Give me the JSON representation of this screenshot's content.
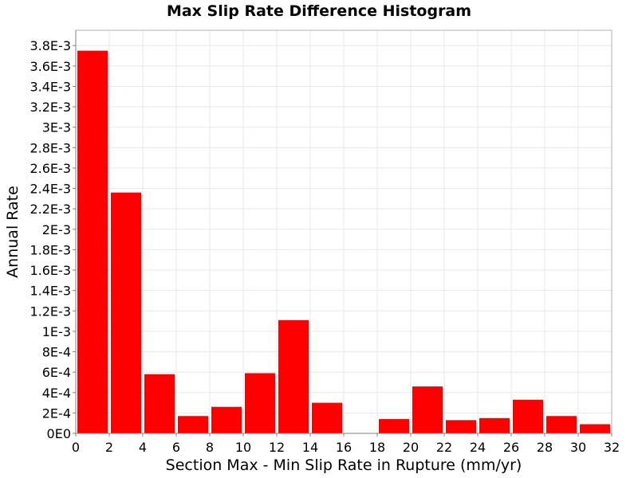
{
  "chart_data": {
    "type": "bar",
    "title": "Max Slip Rate Difference Histogram",
    "xlabel": "Section Max - Min Slip Rate in Rupture (mm/yr)",
    "ylabel": "Annual Rate",
    "xlim": [
      0,
      32
    ],
    "ylim": [
      0,
      0.00395
    ],
    "bin_width": 2,
    "bins": [
      {
        "x0": 0,
        "x1": 2,
        "value": 0.00375
      },
      {
        "x0": 2,
        "x1": 4,
        "value": 0.00236
      },
      {
        "x0": 4,
        "x1": 6,
        "value": 0.00058
      },
      {
        "x0": 6,
        "x1": 8,
        "value": 0.00017
      },
      {
        "x0": 8,
        "x1": 10,
        "value": 0.00026
      },
      {
        "x0": 10,
        "x1": 12,
        "value": 0.00059
      },
      {
        "x0": 12,
        "x1": 14,
        "value": 0.00111
      },
      {
        "x0": 14,
        "x1": 16,
        "value": 0.0003
      },
      {
        "x0": 16,
        "x1": 18,
        "value": 0
      },
      {
        "x0": 18,
        "x1": 20,
        "value": 0.00014
      },
      {
        "x0": 20,
        "x1": 22,
        "value": 0.00046
      },
      {
        "x0": 22,
        "x1": 24,
        "value": 0.00013
      },
      {
        "x0": 24,
        "x1": 26,
        "value": 0.00015
      },
      {
        "x0": 26,
        "x1": 28,
        "value": 0.00033
      },
      {
        "x0": 28,
        "x1": 30,
        "value": 0.00017
      },
      {
        "x0": 30,
        "x1": 32,
        "value": 9e-05
      }
    ],
    "x_ticks": [
      0,
      2,
      4,
      6,
      8,
      10,
      12,
      14,
      16,
      18,
      20,
      22,
      24,
      26,
      28,
      30,
      32
    ],
    "x_tick_labels": [
      "0",
      "2",
      "4",
      "6",
      "8",
      "10",
      "12",
      "14",
      "16",
      "18",
      "20",
      "22",
      "24",
      "26",
      "28",
      "30",
      "32"
    ],
    "y_ticks": [
      0,
      0.0002,
      0.0004,
      0.0006,
      0.0008,
      0.001,
      0.0012,
      0.0014,
      0.0016,
      0.0018,
      0.002,
      0.0022,
      0.0024,
      0.0026,
      0.0028,
      0.003,
      0.0032,
      0.0034,
      0.0036,
      0.0038
    ],
    "y_tick_labels": [
      "0E0",
      "2E-4",
      "4E-4",
      "6E-4",
      "8E-4",
      "1E-3",
      "1.2E-3",
      "1.4E-3",
      "1.6E-3",
      "1.8E-3",
      "2E-3",
      "2.2E-3",
      "2.4E-3",
      "2.6E-3",
      "2.8E-3",
      "3E-3",
      "3.2E-3",
      "3.4E-3",
      "3.6E-3",
      "3.8E-3"
    ],
    "grid": true,
    "legend": "none",
    "bar_color": "#ff0000",
    "grid_color": "#e8e8e8"
  }
}
